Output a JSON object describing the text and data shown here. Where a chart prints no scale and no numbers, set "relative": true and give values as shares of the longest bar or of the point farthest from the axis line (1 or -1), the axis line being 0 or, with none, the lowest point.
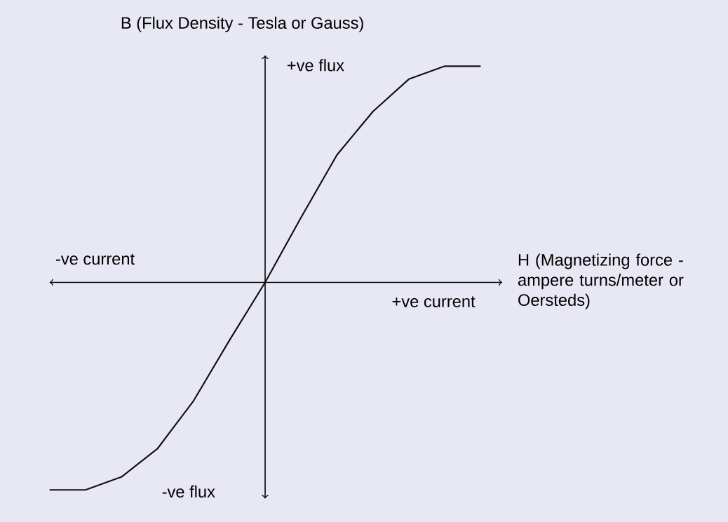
{
  "chart_data": {
    "type": "line",
    "relative": true,
    "xlabel": "H (Magnetizing force - ampere turns/meter or Oersteds)",
    "ylabel": "B (Flux Density - Tesla or Gauss)",
    "annotations": [
      "+ve flux",
      "-ve flux",
      "-ve current",
      "+ve current"
    ],
    "categories": [
      null,
      null,
      null,
      null,
      null,
      null,
      null,
      null,
      null,
      null,
      null,
      null,
      null
    ],
    "series": [
      {
        "color": "#111111",
        "values": [
          -0.96,
          -0.96,
          -0.9,
          -0.77,
          -0.55,
          -0.27,
          0,
          0.3,
          0.59,
          0.79,
          0.94,
          1,
          1
        ]
      }
    ],
    "marker": "none",
    "line_style": "solid"
  }
}
